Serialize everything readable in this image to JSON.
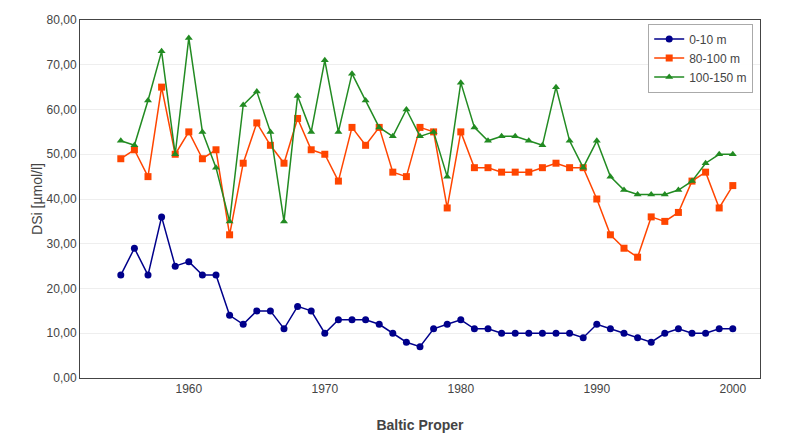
{
  "chart_data": {
    "type": "line",
    "xlabel": "Baltic Proper",
    "ylabel": "DSi [µmol/l]",
    "xlim": [
      1952,
      2002
    ],
    "xticks": [
      1960,
      1970,
      1980,
      1990,
      2000
    ],
    "ylim": [
      0,
      80
    ],
    "yticks": [
      {
        "value": 0,
        "label": "0,00"
      },
      {
        "value": 10,
        "label": "10,00"
      },
      {
        "value": 20,
        "label": "20,00"
      },
      {
        "value": 30,
        "label": "30,00"
      },
      {
        "value": 40,
        "label": "40,00"
      },
      {
        "value": 50,
        "label": "50,00"
      },
      {
        "value": 60,
        "label": "60,00"
      },
      {
        "value": 70,
        "label": "70,00"
      },
      {
        "value": 80,
        "label": "80,00"
      }
    ],
    "grid": "y",
    "legend": "upper right",
    "x": [
      1955,
      1956,
      1957,
      1958,
      1959,
      1960,
      1961,
      1962,
      1963,
      1964,
      1965,
      1966,
      1967,
      1968,
      1969,
      1970,
      1971,
      1972,
      1973,
      1974,
      1975,
      1976,
      1977,
      1978,
      1979,
      1980,
      1981,
      1982,
      1983,
      1984,
      1985,
      1986,
      1987,
      1988,
      1989,
      1990,
      1991,
      1992,
      1993,
      1994,
      1995,
      1996,
      1997,
      1998,
      1999,
      2000
    ],
    "series": [
      {
        "name": "0-10 m",
        "color": "#00008b",
        "marker": "circle",
        "values": [
          23,
          29,
          23,
          36,
          25,
          26,
          23,
          23,
          14,
          12,
          15,
          15,
          11,
          16,
          15,
          10,
          13,
          13,
          13,
          12,
          10,
          8,
          7,
          11,
          12,
          13,
          11,
          11,
          10,
          10,
          10,
          10,
          10,
          10,
          9,
          12,
          11,
          10,
          9,
          8,
          10,
          11,
          10,
          10,
          11,
          11
        ]
      },
      {
        "name": "80-100 m",
        "color": "#ff4500",
        "marker": "square",
        "values": [
          49,
          51,
          45,
          65,
          50,
          55,
          49,
          51,
          32,
          48,
          57,
          52,
          48,
          58,
          51,
          50,
          44,
          56,
          52,
          56,
          46,
          45,
          56,
          55,
          38,
          55,
          47,
          47,
          46,
          46,
          46,
          47,
          48,
          47,
          47,
          40,
          32,
          29,
          27,
          36,
          35,
          37,
          44,
          46,
          38,
          43
        ]
      },
      {
        "name": "100-150 m",
        "color": "#228b22",
        "marker": "triangle-up",
        "values": [
          53,
          52,
          62,
          73,
          50,
          76,
          55,
          47,
          35,
          61,
          64,
          55,
          35,
          63,
          55,
          71,
          55,
          68,
          62,
          56,
          54,
          60,
          54,
          55,
          45,
          66,
          56,
          53,
          54,
          54,
          53,
          52,
          65,
          53,
          47,
          53,
          45,
          42,
          41,
          41,
          41,
          42,
          44,
          48,
          50,
          50
        ]
      }
    ]
  }
}
